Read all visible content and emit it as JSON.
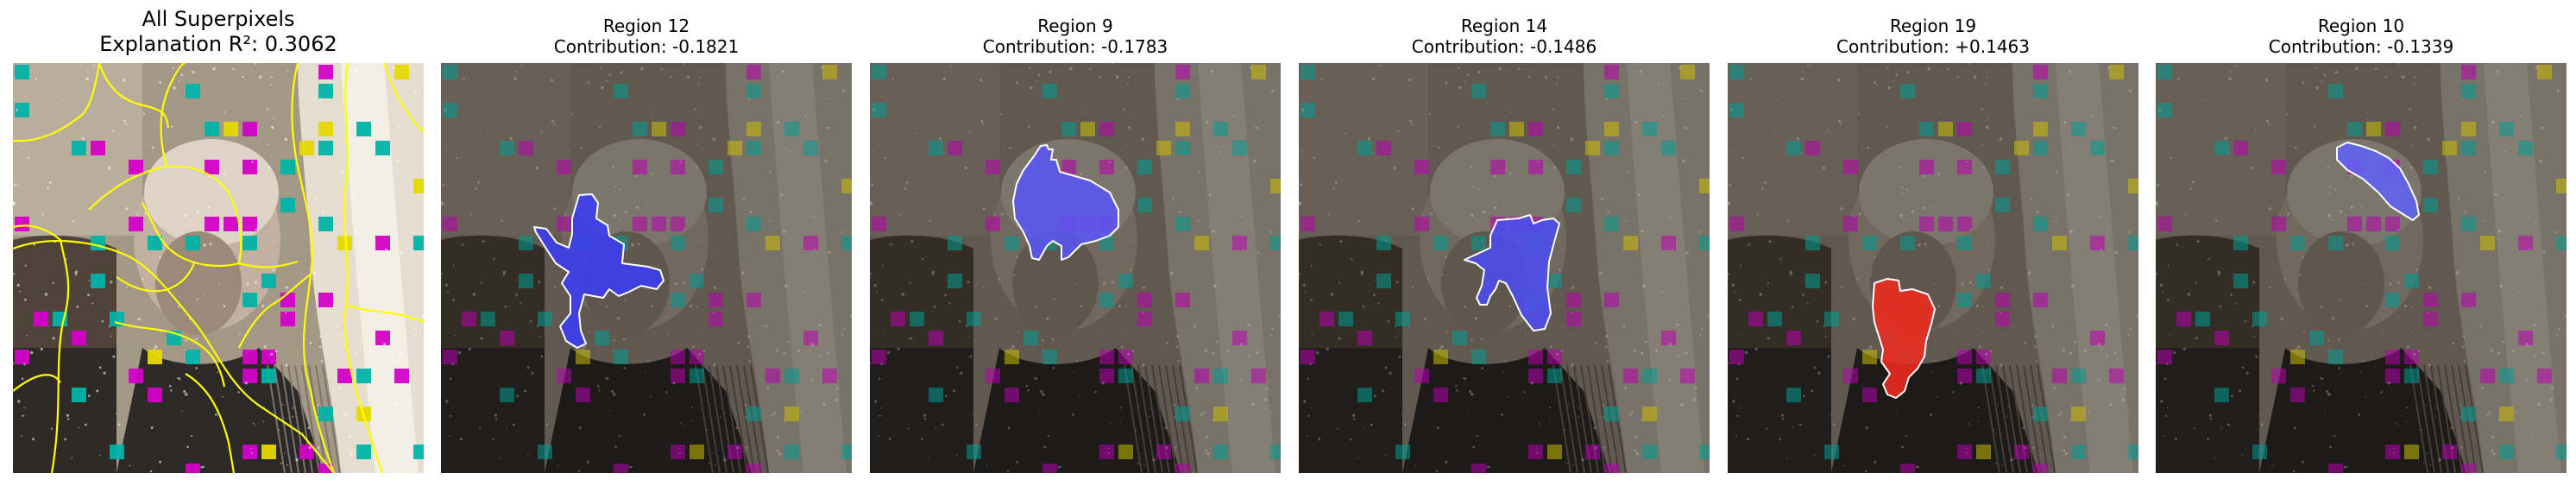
{
  "overview": {
    "title_line1": "All Superpixels",
    "title_line2": "Explanation R²: 0.3062"
  },
  "regions": [
    {
      "title": "Region 12",
      "contribution": "Contribution: -0.1821",
      "mask_color": "#3a3cf0"
    },
    {
      "title": "Region 9",
      "contribution": "Contribution: -0.1783",
      "mask_color": "#5a55f2"
    },
    {
      "title": "Region 14",
      "contribution": "Contribution: -0.1486",
      "mask_color": "#4b4cf0"
    },
    {
      "title": "Region 19",
      "contribution": "Contribution: +0.1463",
      "mask_color": "#f02a20"
    },
    {
      "title": "Region 10",
      "contribution": "Contribution: -0.1339",
      "mask_color": "#5e62f5"
    }
  ],
  "colors": {
    "superpixel_boundary": "#ffff00",
    "mask_outline": "#ffffff",
    "negative_contribution": "#3b3cf0",
    "positive_contribution": "#f02a20",
    "patch_magenta": "#d400c8",
    "patch_cyan": "#00b3a6",
    "patch_yellow": "#e6d800"
  }
}
